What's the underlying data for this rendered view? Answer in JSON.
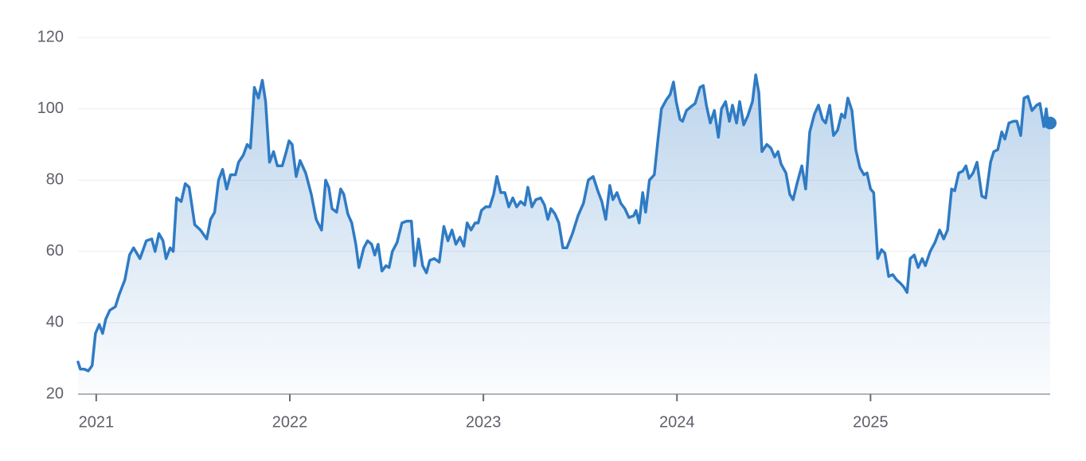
{
  "chart_data": {
    "type": "area",
    "color": "#2f7bc4",
    "grid": true,
    "x": [
      2020.906,
      2020.918,
      2020.938,
      2020.959,
      2020.979,
      2020.996,
      2021.016,
      2021.033,
      2021.049,
      2021.07,
      2021.099,
      2021.119,
      2021.148,
      2021.172,
      2021.193,
      2021.226,
      2021.259,
      2021.287,
      2021.304,
      2021.324,
      2021.345,
      2021.361,
      2021.382,
      2021.398,
      2021.415,
      2021.439,
      2021.46,
      2021.48,
      2021.509,
      2021.538,
      2021.571,
      2021.591,
      2021.612,
      2021.632,
      2021.653,
      2021.674,
      2021.694,
      2021.719,
      2021.735,
      2021.76,
      2021.78,
      2021.797,
      2021.817,
      2021.838,
      2021.858,
      2021.875,
      2021.895,
      2021.916,
      2021.936,
      2021.961,
      2021.982,
      2021.996,
      2022.012,
      2022.033,
      2022.053,
      2022.082,
      2022.111,
      2022.136,
      2022.164,
      2022.185,
      2022.201,
      2022.218,
      2022.242,
      2022.263,
      2022.279,
      2022.3,
      2022.32,
      2022.341,
      2022.357,
      2022.382,
      2022.402,
      2022.423,
      2022.439,
      2022.456,
      2022.476,
      2022.497,
      2022.513,
      2022.53,
      2022.554,
      2022.579,
      2022.604,
      2022.628,
      2022.645,
      2022.665,
      2022.686,
      2022.706,
      2022.723,
      2022.747,
      2022.772,
      2022.796,
      2022.817,
      2022.838,
      2022.858,
      2022.879,
      2022.899,
      2022.916,
      2022.936,
      2022.957,
      2022.973,
      2022.99,
      2023.012,
      2023.033,
      2023.053,
      2023.07,
      2023.09,
      2023.111,
      2023.131,
      2023.152,
      2023.172,
      2023.193,
      2023.214,
      2023.23,
      2023.251,
      2023.271,
      2023.296,
      2023.316,
      2023.333,
      2023.349,
      2023.37,
      2023.39,
      2023.411,
      2023.431,
      2023.46,
      2023.489,
      2023.517,
      2023.542,
      2023.567,
      2023.591,
      2023.612,
      2023.632,
      2023.653,
      2023.669,
      2023.69,
      2023.71,
      2023.731,
      2023.752,
      2023.776,
      2023.789,
      2023.805,
      2023.823,
      2023.838,
      2023.858,
      2023.883,
      2023.903,
      2023.92,
      2023.945,
      2023.965,
      2023.982,
      2023.996,
      2024.016,
      2024.029,
      2024.049,
      2024.07,
      2024.094,
      2024.119,
      2024.136,
      2024.152,
      2024.172,
      2024.193,
      2024.214,
      2024.23,
      2024.251,
      2024.271,
      2024.287,
      2024.308,
      2024.324,
      2024.345,
      2024.366,
      2024.39,
      2024.407,
      2024.423,
      2024.439,
      2024.464,
      2024.485,
      2024.505,
      2024.522,
      2024.538,
      2024.563,
      2024.583,
      2024.6,
      2024.62,
      2024.645,
      2024.665,
      2024.686,
      2024.71,
      2024.731,
      2024.752,
      2024.768,
      2024.789,
      2024.809,
      2024.83,
      2024.85,
      2024.867,
      2024.883,
      2024.904,
      2024.924,
      2024.945,
      2024.966,
      2024.982,
      2025.0,
      2025.016,
      2025.037,
      2025.057,
      2025.074,
      2025.094,
      2025.115,
      2025.135,
      2025.156,
      2025.172,
      2025.189,
      2025.205,
      2025.226,
      2025.246,
      2025.267,
      2025.283,
      2025.308,
      2025.333,
      2025.357,
      2025.378,
      2025.398,
      2025.419,
      2025.435,
      2025.456,
      2025.476,
      2025.493,
      2025.509,
      2025.53,
      2025.55,
      2025.575,
      2025.595,
      2025.62,
      2025.637,
      2025.657,
      2025.678,
      2025.694,
      2025.715,
      2025.739,
      2025.756,
      2025.776,
      2025.793,
      2025.813,
      2025.834,
      2025.858,
      2025.875,
      2025.895,
      2025.908,
      2025.916,
      2025.928
    ],
    "values": [
      29,
      27,
      27,
      26.5,
      28,
      37,
      39.5,
      37,
      41,
      43.5,
      44.5,
      48,
      52,
      59,
      61,
      58,
      63,
      63.5,
      60,
      65,
      63,
      58,
      61,
      60,
      75,
      74,
      79,
      78,
      67.5,
      66,
      63.5,
      69,
      71,
      80,
      83,
      77.5,
      81.5,
      81.5,
      85,
      87,
      90,
      89,
      106,
      103,
      108,
      102,
      85,
      88,
      84,
      84,
      88,
      91,
      90,
      81,
      85.5,
      82,
      76,
      69,
      66,
      80,
      78,
      72,
      71,
      77.5,
      76,
      70.5,
      68,
      62,
      55.5,
      61,
      63,
      62,
      59,
      62,
      54.5,
      56,
      55.5,
      60,
      62.5,
      68,
      68.5,
      68.5,
      56,
      63.5,
      56,
      54,
      57.5,
      58,
      57,
      67,
      63,
      66,
      62,
      64,
      61.5,
      68,
      66,
      68,
      68,
      71.5,
      72.5,
      72.5,
      76,
      81,
      76.5,
      76.5,
      72.5,
      75,
      72.5,
      74,
      73,
      78,
      72.5,
      74.5,
      75,
      73,
      69,
      72,
      70.5,
      68,
      61,
      61,
      65,
      70,
      73.5,
      80,
      81,
      77,
      74,
      69,
      78.5,
      74.5,
      76.5,
      73.5,
      72,
      69.5,
      70,
      71.5,
      68,
      76.5,
      71,
      80,
      81.5,
      92,
      100,
      102.5,
      104,
      107.5,
      102,
      97,
      96.5,
      99.5,
      100.5,
      101.5,
      106,
      106.5,
      101,
      96,
      99.5,
      92,
      100,
      102,
      96.5,
      101,
      96,
      102,
      95.5,
      98,
      102,
      109.5,
      104.5,
      88,
      90,
      89,
      86.5,
      88,
      84.5,
      82,
      76,
      74.5,
      79,
      84,
      77.5,
      93.5,
      98.5,
      101,
      97,
      96,
      101,
      92.5,
      94,
      98.5,
      97.5,
      103,
      99.5,
      88.5,
      83.5,
      81.5,
      82,
      77.5,
      76.5,
      58,
      60.5,
      59.5,
      53,
      53.5,
      52,
      51,
      50,
      48.5,
      58,
      59,
      55.5,
      58,
      56,
      60,
      62.5,
      66,
      63.5,
      66,
      77.5,
      77,
      82,
      82.5,
      84,
      80.5,
      82,
      85,
      75.5,
      75,
      85,
      88,
      88.5,
      93.5,
      91.5,
      96,
      96.5,
      96.5,
      92.5,
      103,
      103.5,
      99.5,
      101,
      101.5,
      95,
      100,
      96,
      96
    ],
    "xlim": [
      2020.906,
      2025.928
    ],
    "xticks": [
      2021,
      2022,
      2023,
      2024,
      2025
    ],
    "ylim": [
      20,
      120
    ],
    "yticks": [
      20,
      40,
      60,
      80,
      100,
      120
    ]
  }
}
